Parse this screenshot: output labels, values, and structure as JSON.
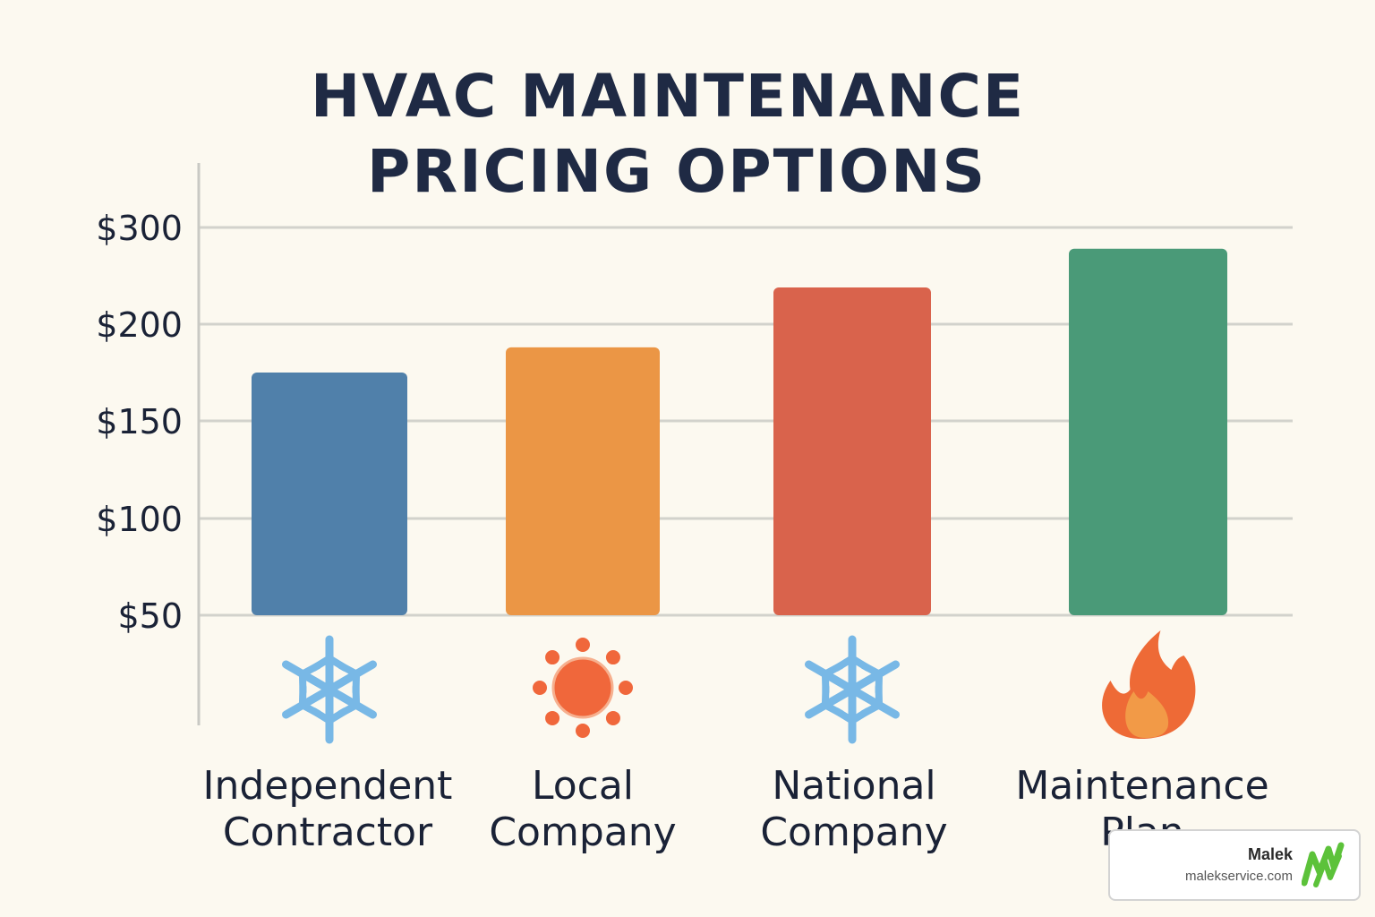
{
  "chart_data": {
    "type": "bar",
    "title_lines": [
      "HVAC MAINTENANCE",
      "PRICING OPTIONS"
    ],
    "y_ticks": [
      {
        "value": 50,
        "label": "$50"
      },
      {
        "value": 100,
        "label": "$100"
      },
      {
        "value": 150,
        "label": "$150"
      },
      {
        "value": 200,
        "label": "$200"
      },
      {
        "value": 300,
        "label": "$300"
      }
    ],
    "grid": true,
    "categories": [
      {
        "label_lines": [
          "Independent",
          "Contractor"
        ],
        "value": 175,
        "color": "#5080aa",
        "icon": "snowflake-icon"
      },
      {
        "label_lines": [
          "Local",
          "Company"
        ],
        "value": 188,
        "color": "#eb9645",
        "icon": "sun-icon"
      },
      {
        "label_lines": [
          "National",
          "Company"
        ],
        "value": 238,
        "color": "#d9634c",
        "icon": "snowflake-icon"
      },
      {
        "label_lines": [
          "Maintenance",
          "Plan"
        ],
        "value": 278,
        "color": "#4a9a78",
        "icon": "flame-icon"
      }
    ]
  },
  "brand": {
    "name": "Malek",
    "url": "malekservice.com",
    "accent_color": "#5cc23a"
  }
}
